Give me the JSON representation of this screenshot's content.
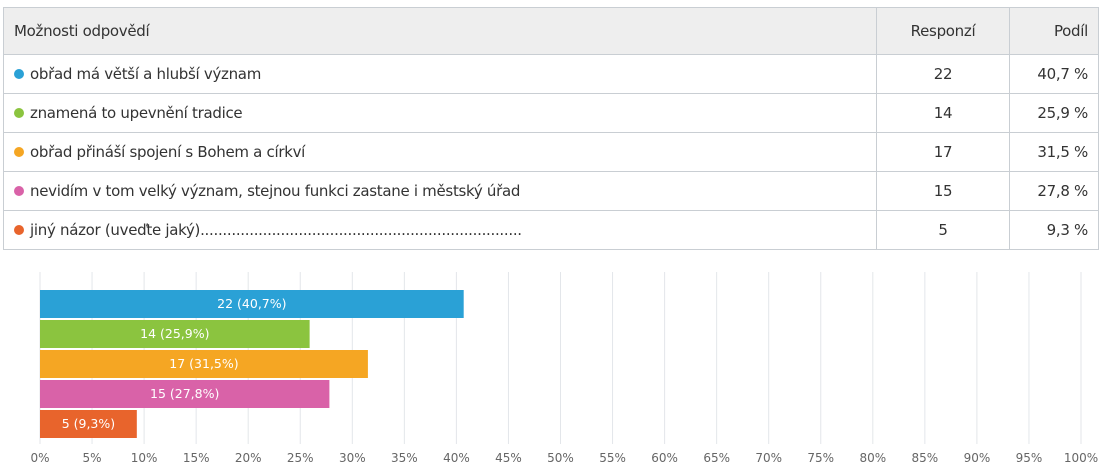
{
  "table": {
    "headers": {
      "option": "Možnosti odpovědí",
      "count": "Responzí",
      "share": "Podíl"
    },
    "rows": [
      {
        "label": "obřad má větší a hlubší význam",
        "count": "22",
        "share": "40,7 %",
        "color": "#2aa1d6"
      },
      {
        "label": "znamená to upevnění tradice",
        "count": "14",
        "share": "25,9 %",
        "color": "#8bc43f"
      },
      {
        "label": "obřad přináší spojení s Bohem a církví",
        "count": "17",
        "share": "31,5 %",
        "color": "#f5a623"
      },
      {
        "label": "nevidím v tom velký význam, stejnou funkci zastane i městský úřad",
        "count": "15",
        "share": "27,8 %",
        "color": "#d962a8"
      },
      {
        "label": "jiný názor (uveďte jaký)........................................................................",
        "count": "5",
        "share": "9,3 %",
        "color": "#e8642c"
      }
    ]
  },
  "chart_data": {
    "type": "bar",
    "orientation": "horizontal",
    "categories": [
      "obřad má větší a hlubší význam",
      "znamená to upevnění tradice",
      "obřad přináší spojení s Bohem a církví",
      "nevidím v tom velký význam, stejnou funkci zastane i městský úřad",
      "jiný názor (uveďte jaký)........................................................................"
    ],
    "values": [
      40.7,
      25.9,
      31.5,
      27.8,
      9.3
    ],
    "data_labels": [
      "22 (40,7%)",
      "14 (25,9%)",
      "17 (31,5%)",
      "15 (27,8%)",
      "5 (9,3%)"
    ],
    "colors": [
      "#2aa1d6",
      "#8bc43f",
      "#f5a623",
      "#d962a8",
      "#e8642c"
    ],
    "xlim": [
      0,
      100
    ],
    "xticks": [
      "0%",
      "5%",
      "10%",
      "15%",
      "20%",
      "25%",
      "30%",
      "35%",
      "40%",
      "45%",
      "50%",
      "55%",
      "60%",
      "65%",
      "70%",
      "75%",
      "80%",
      "85%",
      "90%",
      "95%",
      "100%"
    ],
    "grid": true
  }
}
